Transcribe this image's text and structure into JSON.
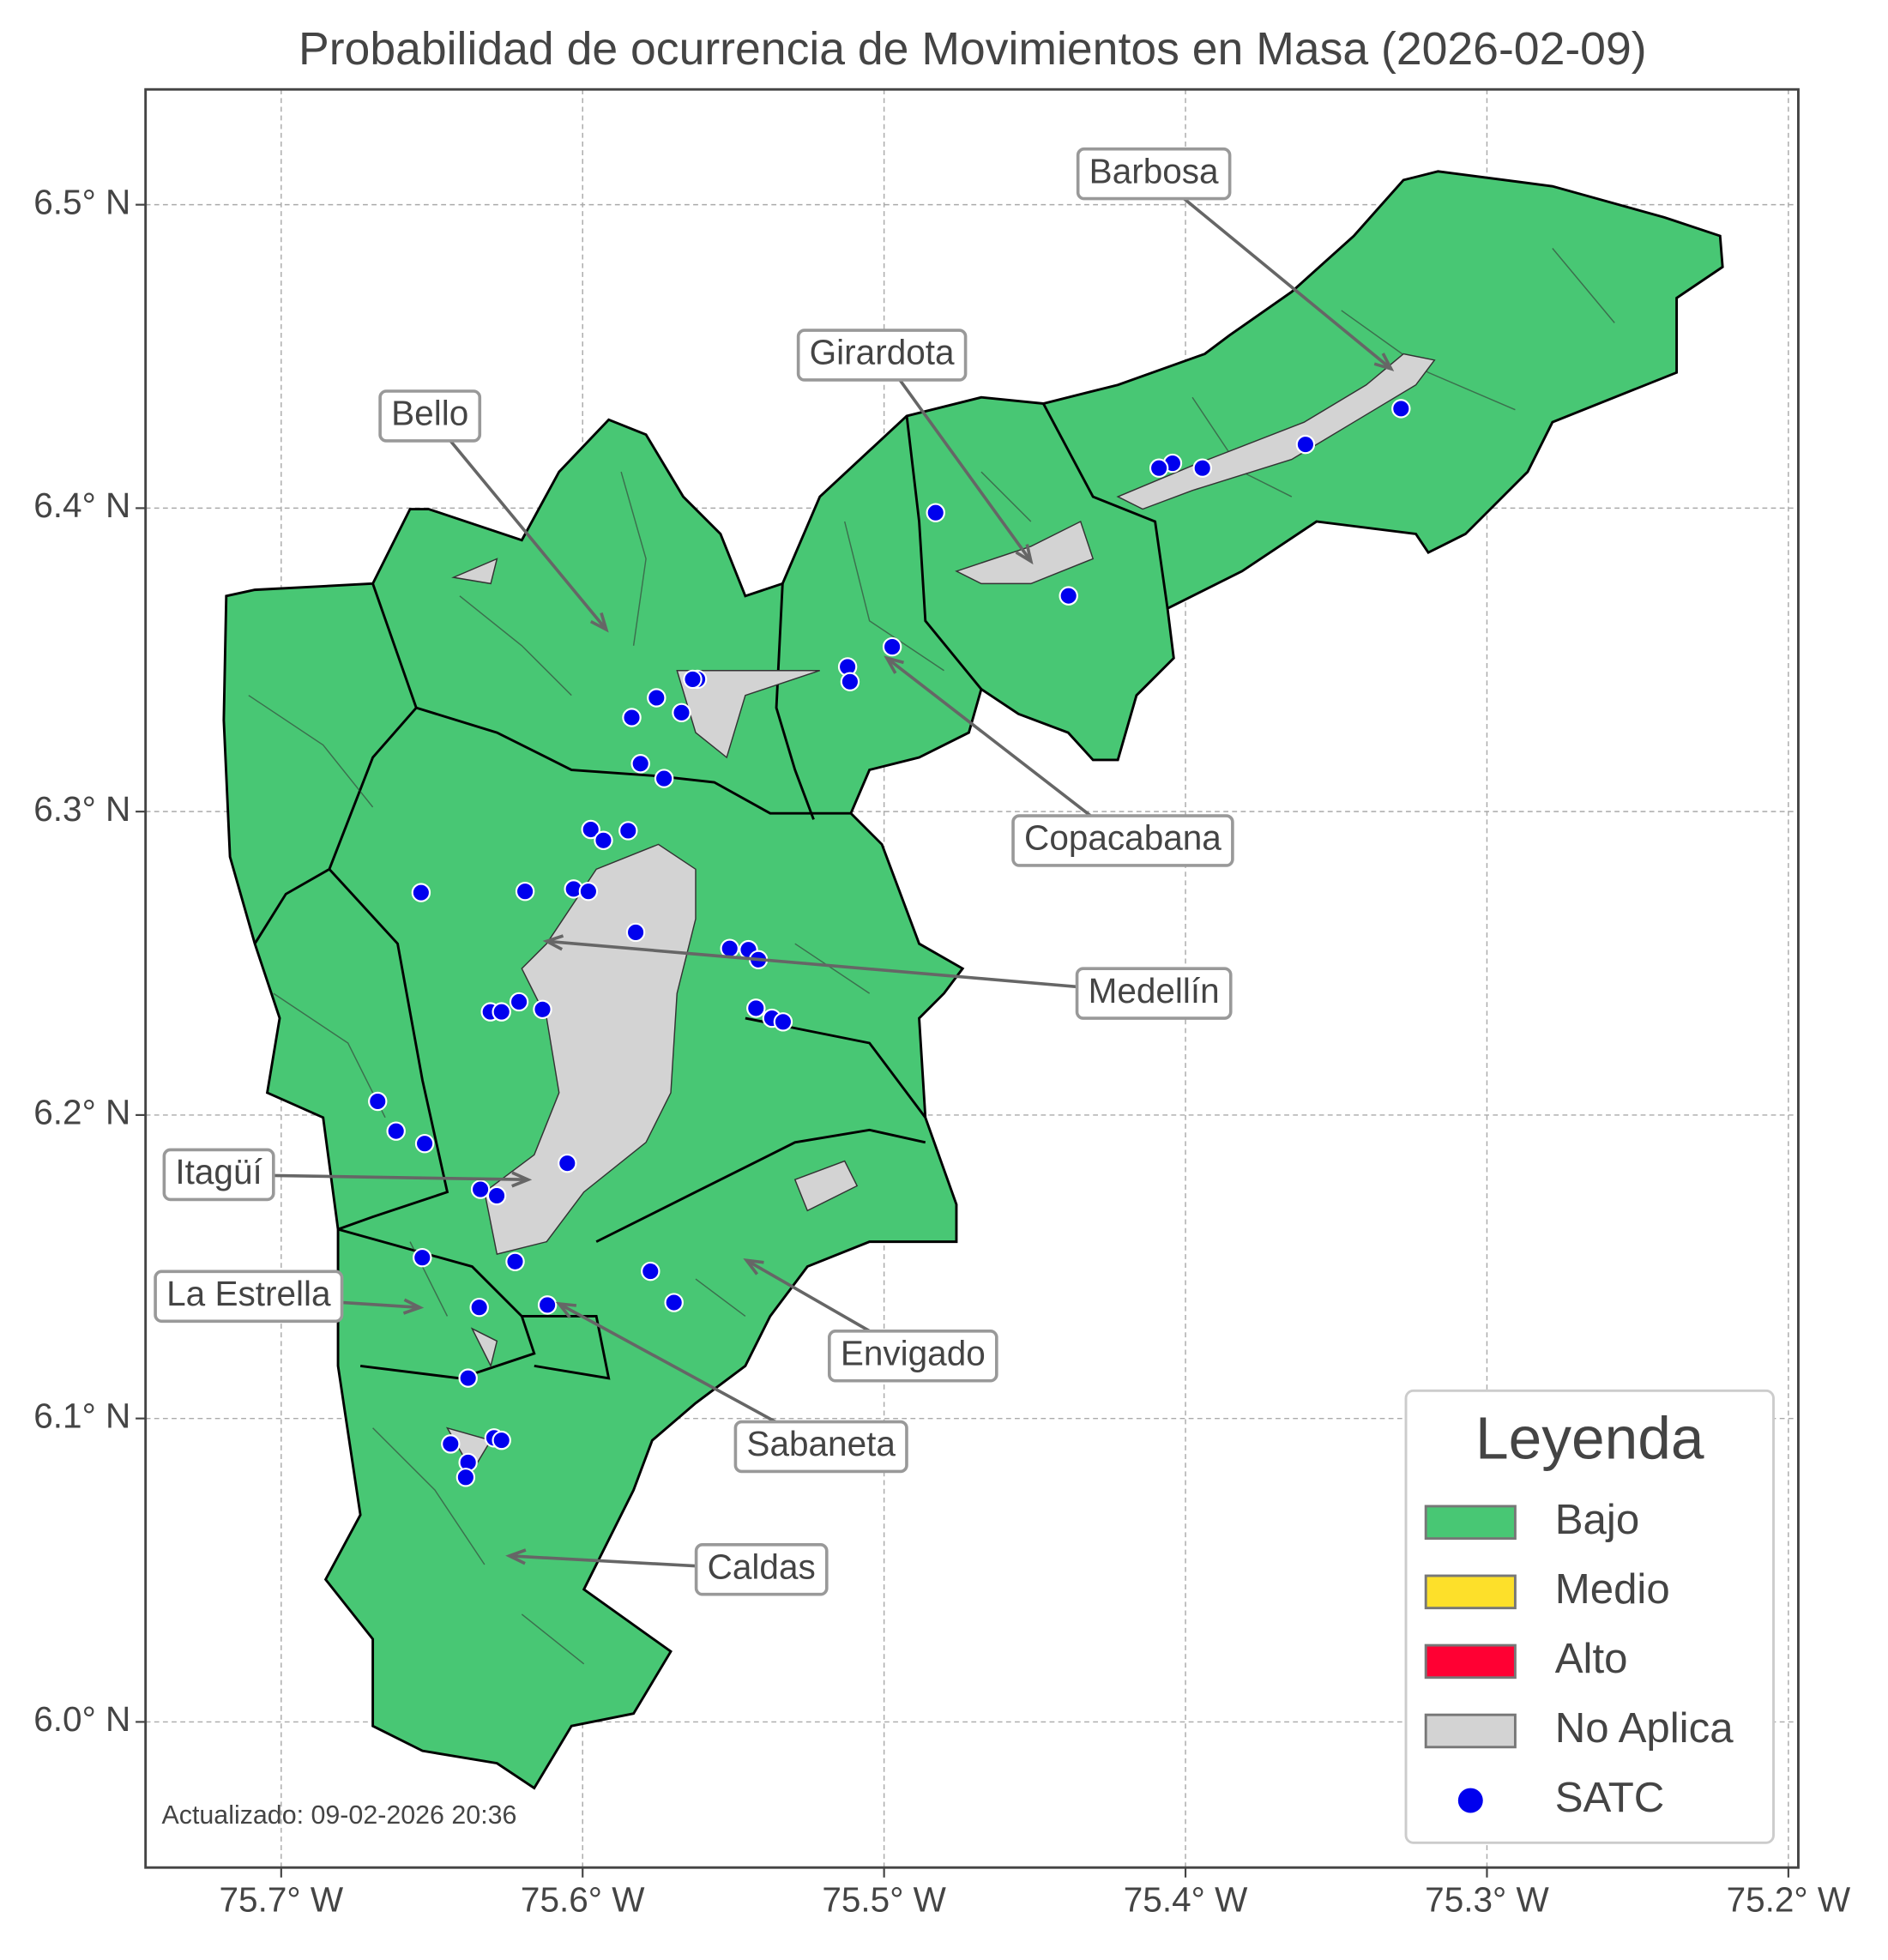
{
  "chart_data": {
    "type": "map",
    "title": "Probabilidad de ocurrencia de Movimientos en Masa (2026-02-09)",
    "xlim": [
      -75.745,
      -75.1967
    ],
    "ylim": [
      5.952,
      6.538
    ],
    "xticks": [
      {
        "value": -75.7,
        "label": "75.7° W"
      },
      {
        "value": -75.6,
        "label": "75.6° W"
      },
      {
        "value": -75.5,
        "label": "75.5° W"
      },
      {
        "value": -75.4,
        "label": "75.4° W"
      },
      {
        "value": -75.3,
        "label": "75.3° W"
      },
      {
        "value": -75.2,
        "label": "75.2° W"
      }
    ],
    "yticks": [
      {
        "value": 6.0,
        "label": "6.0° N"
      },
      {
        "value": 6.1,
        "label": "6.1° N"
      },
      {
        "value": 6.2,
        "label": "6.2° N"
      },
      {
        "value": 6.3,
        "label": "6.3° N"
      },
      {
        "value": 6.4,
        "label": "6.4° N"
      },
      {
        "value": 6.5,
        "label": "6.5° N"
      }
    ],
    "grid": true,
    "annotations": [
      "Barbosa",
      "Girardota",
      "Bello",
      "Copacabana",
      "Medellín",
      "Itagüí",
      "La Estrella",
      "Envigado",
      "Sabaneta",
      "Caldas"
    ],
    "legend": {
      "title": "Leyenda",
      "location": "lower right",
      "entries": [
        {
          "name": "Bajo",
          "color": "#48c774"
        },
        {
          "name": "Medio",
          "color": "#fde02a"
        },
        {
          "name": "Alto",
          "color": "#ff0033"
        },
        {
          "name": "No Aplica",
          "color": "#d3d3d3"
        }
      ]
    },
    "series": [
      {
        "name": "SATC",
        "color": "#0000ee",
        "x": [
          -75.3285,
          -75.3602,
          -75.3944,
          -75.4043,
          -75.4088,
          -75.4829,
          -75.4388,
          -75.4973,
          -75.5121,
          -75.5113,
          -75.5619,
          -75.5635,
          -75.5755,
          -75.5672,
          -75.5837,
          -75.5808,
          -75.573,
          -75.5973,
          -75.5849,
          -75.5931,
          -75.6536,
          -75.6191,
          -75.603,
          -75.5981,
          -75.5824,
          -75.5512,
          -75.545,
          -75.5417,
          -75.5425,
          -75.5372,
          -75.5335,
          -75.6211,
          -75.6306,
          -75.6269,
          -75.6133,
          -75.668,
          -75.6619,
          -75.6524,
          -75.6051,
          -75.6339,
          -75.6285,
          -75.6224,
          -75.6532,
          -75.5775,
          -75.5697,
          -75.6343,
          -75.6117,
          -75.638,
          -75.6294,
          -75.6269,
          -75.6438,
          -75.638,
          -75.6388
        ],
        "y": [
          6.4328,
          6.421,
          6.4132,
          6.4148,
          6.4132,
          6.3985,
          6.3711,
          6.3543,
          6.3477,
          6.3428,
          6.3436,
          6.3436,
          6.3375,
          6.3326,
          6.331,
          6.3158,
          6.3109,
          6.2941,
          6.2937,
          6.2905,
          6.2733,
          6.2737,
          6.2745,
          6.2737,
          6.2602,
          6.2549,
          6.2545,
          6.2512,
          6.2352,
          6.2319,
          6.2307,
          6.2373,
          6.234,
          6.234,
          6.2348,
          6.2045,
          6.1947,
          6.1906,
          6.1841,
          6.1755,
          6.1734,
          6.1517,
          6.153,
          6.1485,
          6.1382,
          6.1366,
          6.1374,
          6.1133,
          6.0936,
          6.0928,
          6.0916,
          6.0855,
          6.0806
        ]
      }
    ],
    "footnote": "Actualizado: 09-02-2026 20:36"
  }
}
